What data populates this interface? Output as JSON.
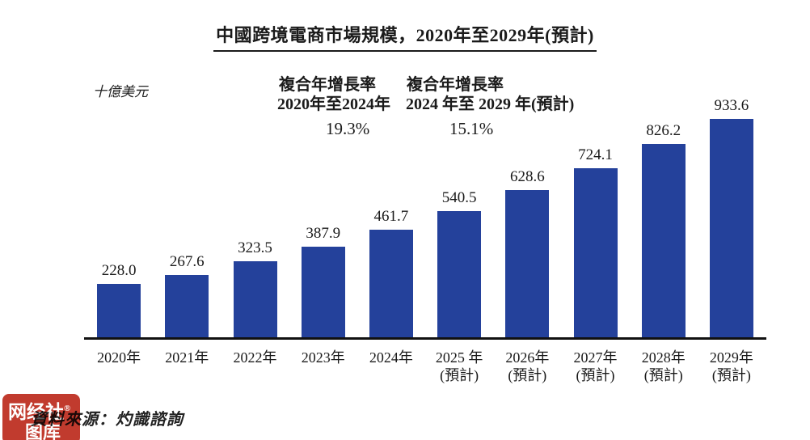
{
  "page": {
    "title": "中國跨境電商市場規模，2020年至2029年(預計)",
    "unit_label": "十億美元",
    "source": "資料來源：灼識諮詢"
  },
  "cagr_annotations": [
    {
      "label_line1": "複合年增長率",
      "label_line2": "2020年至2024年",
      "value": "19.3%"
    },
    {
      "label_line1": "複合年增長率",
      "label_line2": "2024 年至 2029 年(預計)",
      "value": "15.1%"
    }
  ],
  "watermark": {
    "line1": "网经社",
    "reg": "®",
    "line2": "图库"
  },
  "colors": {
    "bar": "#24419B",
    "axis": "#111111",
    "stamp_red": "#C13B2E"
  },
  "chart_data": {
    "type": "bar",
    "title": "中國跨境電商市場規模，2020年至2029年(預計)",
    "ylabel": "十億美元",
    "xlabel": "",
    "categories": [
      "2020年",
      "2021年",
      "2022年",
      "2023年",
      "2024年",
      "2025 年",
      "2026年",
      "2027年",
      "2028年",
      "2029年"
    ],
    "category_notes": [
      "",
      "",
      "",
      "",
      "",
      "(預計)",
      "(預計)",
      "(預計)",
      "(預計)",
      "(預計)"
    ],
    "values": [
      228.0,
      267.6,
      323.5,
      387.9,
      461.7,
      540.5,
      628.6,
      724.1,
      826.2,
      933.6
    ],
    "value_labels": [
      "228.0",
      "267.6",
      "323.5",
      "387.9",
      "461.7",
      "540.5",
      "628.6",
      "724.1",
      "826.2",
      "933.6"
    ],
    "ylim": [
      0,
      960
    ],
    "grid": false,
    "legend": "none",
    "annotations": [
      "複合年增長率 2020年至2024年: 19.3%",
      "複合年增長率 2024 年至 2029 年(預計): 15.1%"
    ]
  }
}
